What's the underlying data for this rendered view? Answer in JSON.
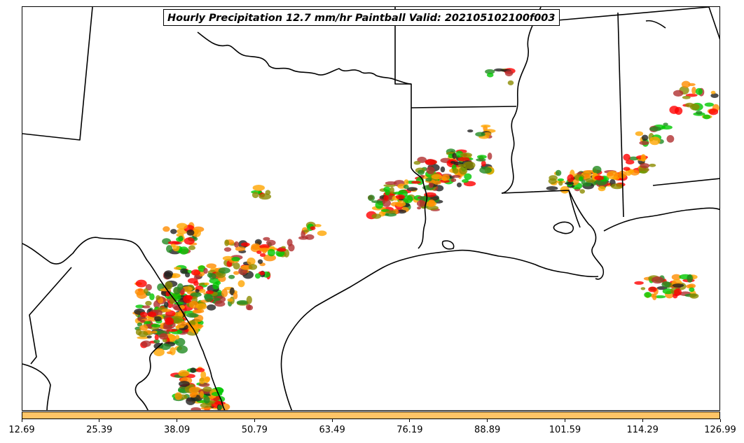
{
  "map": {
    "title": "Hourly Precipitation 12.7 mm/hr Paintball Valid: 202105102100f003",
    "colors": {
      "border": "#000000",
      "background": "#ffffff",
      "paintball_members": [
        "#ff0000",
        "#ff8c00",
        "#00c800",
        "#8b8b00",
        "#b03030",
        "#228b22",
        "#222222",
        "#ffa500"
      ]
    }
  },
  "colorbar": {
    "fill_color": "#ffc466",
    "tick_labels": [
      "12.69",
      "25.39",
      "38.09",
      "50.79",
      "63.49",
      "76.19",
      "88.89",
      "101.59",
      "114.29",
      "126.99"
    ]
  }
}
